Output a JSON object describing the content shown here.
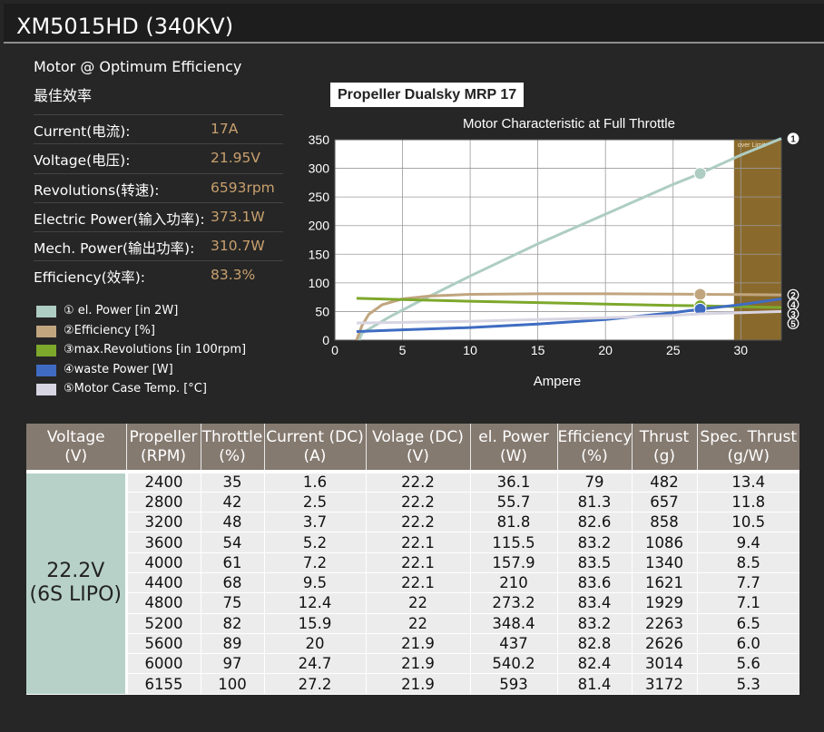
{
  "page_title": "XM5015HD (340KV)",
  "specs": {
    "heading1": "Motor @ Optimum Efficiency",
    "heading2": "最佳效率",
    "rows": [
      {
        "label": "Current(电流):",
        "value": "17A"
      },
      {
        "label": "Voltage(电压):",
        "value": "21.95V"
      },
      {
        "label": "Revolutions(转速):",
        "value": "6593rpm"
      },
      {
        "label": "Electric Power(输入功率):",
        "value": "373.1W"
      },
      {
        "label": "Mech. Power(输出功率):",
        "value": "310.7W"
      },
      {
        "label": "Efficiency(效率):",
        "value": "83.3%"
      }
    ]
  },
  "legend": [
    {
      "label": "① el. Power [in 2W]",
      "color": "#aecdc3"
    },
    {
      "label": "②Efficiency [%]",
      "color": "#c0a57f"
    },
    {
      "label": "③max.Revolutions [in 100rpm]",
      "color": "#7da82c"
    },
    {
      "label": "④waste Power [W]",
      "color": "#3f6cc2"
    },
    {
      "label": "⑤Motor Case Temp. [°C]",
      "color": "#d8d5e2"
    }
  ],
  "propeller_label": "Propeller Dualsky MRP 17",
  "chart_data": {
    "type": "line",
    "title": "Motor Characteristic at Full Throttle",
    "xlabel": "Ampere",
    "ylabel": "",
    "xlim": [
      0,
      33
    ],
    "ylim": [
      0,
      350
    ],
    "xticks": [
      "0",
      "5",
      "10",
      "15",
      "20",
      "25",
      "30"
    ],
    "yticks": [
      "0",
      "50",
      "100",
      "150",
      "200",
      "250",
      "300",
      "350"
    ],
    "grid": true,
    "overlimit_label": "over Limit",
    "overlimit_from": 29.5,
    "operating_point_x": 27,
    "series": [
      {
        "id": "1",
        "marker": "1",
        "color": "#aecdc3",
        "points": [
          [
            1.8,
            0
          ],
          [
            2,
            12
          ],
          [
            4,
            40
          ],
          [
            6,
            65
          ],
          [
            10,
            112
          ],
          [
            15,
            168
          ],
          [
            20,
            220
          ],
          [
            25,
            272
          ],
          [
            27,
            291
          ],
          [
            30,
            323
          ],
          [
            33,
            352
          ]
        ]
      },
      {
        "id": "2",
        "marker": "2",
        "color": "#c0a57f",
        "points": [
          [
            1.6,
            0
          ],
          [
            2,
            25
          ],
          [
            2.5,
            45
          ],
          [
            3.5,
            62
          ],
          [
            5,
            72
          ],
          [
            7,
            77
          ],
          [
            10,
            80
          ],
          [
            15,
            81
          ],
          [
            20,
            81
          ],
          [
            25,
            80.5
          ],
          [
            27,
            80
          ],
          [
            30,
            79.5
          ],
          [
            33,
            79
          ]
        ]
      },
      {
        "id": "3",
        "marker": "3",
        "color": "#7da82c",
        "points": [
          [
            1.6,
            73
          ],
          [
            5,
            71
          ],
          [
            10,
            68
          ],
          [
            15,
            65.5
          ],
          [
            20,
            63
          ],
          [
            25,
            60.5
          ],
          [
            27,
            60
          ],
          [
            30,
            58.5
          ],
          [
            33,
            57
          ]
        ]
      },
      {
        "id": "4",
        "marker": "4",
        "color": "#3f6cc2",
        "points": [
          [
            1.6,
            15
          ],
          [
            5,
            18
          ],
          [
            10,
            22
          ],
          [
            15,
            28
          ],
          [
            20,
            36
          ],
          [
            25,
            48
          ],
          [
            27,
            54
          ],
          [
            30,
            62
          ],
          [
            33,
            72
          ]
        ]
      },
      {
        "id": "5",
        "marker": "5",
        "color": "#d8d5e2",
        "points": [
          [
            1.6,
            30
          ],
          [
            5,
            31
          ],
          [
            10,
            33
          ],
          [
            15,
            36
          ],
          [
            20,
            39
          ],
          [
            25,
            43
          ],
          [
            27,
            46
          ],
          [
            30,
            48
          ],
          [
            33,
            50
          ]
        ]
      }
    ]
  },
  "table": {
    "headers": [
      [
        "Voltage",
        "(V)"
      ],
      [
        "Propeller",
        "(RPM)"
      ],
      [
        "Throttle",
        "(%)"
      ],
      [
        "Current (DC)",
        "(A)"
      ],
      [
        "Volage (DC)",
        "(V)"
      ],
      [
        "el. Power",
        "(W)"
      ],
      [
        "Efficiency",
        "(%)"
      ],
      [
        "Thrust",
        "(g)"
      ],
      [
        "Spec. Thrust",
        "(g/W)"
      ]
    ],
    "voltage_cell": [
      "22.2V",
      "(6S LIPO)"
    ],
    "rows": [
      [
        "2400",
        "35",
        "1.6",
        "22.2",
        "36.1",
        "79",
        "482",
        "13.4"
      ],
      [
        "2800",
        "42",
        "2.5",
        "22.2",
        "55.7",
        "81.3",
        "657",
        "11.8"
      ],
      [
        "3200",
        "48",
        "3.7",
        "22.2",
        "81.8",
        "82.6",
        "858",
        "10.5"
      ],
      [
        "3600",
        "54",
        "5.2",
        "22.1",
        "115.5",
        "83.2",
        "1086",
        "9.4"
      ],
      [
        "4000",
        "61",
        "7.2",
        "22.1",
        "157.9",
        "83.5",
        "1340",
        "8.5"
      ],
      [
        "4400",
        "68",
        "9.5",
        "22.1",
        "210",
        "83.6",
        "1621",
        "7.7"
      ],
      [
        "4800",
        "75",
        "12.4",
        "22",
        "273.2",
        "83.4",
        "1929",
        "7.1"
      ],
      [
        "5200",
        "82",
        "15.9",
        "22",
        "348.4",
        "83.2",
        "2263",
        "6.5"
      ],
      [
        "5600",
        "89",
        "20",
        "21.9",
        "437",
        "82.8",
        "2626",
        "6.0"
      ],
      [
        "6000",
        "97",
        "24.7",
        "21.9",
        "540.2",
        "82.4",
        "3014",
        "5.6"
      ],
      [
        "6155",
        "100",
        "27.2",
        "21.9",
        "593",
        "81.4",
        "3172",
        "5.3"
      ]
    ]
  }
}
